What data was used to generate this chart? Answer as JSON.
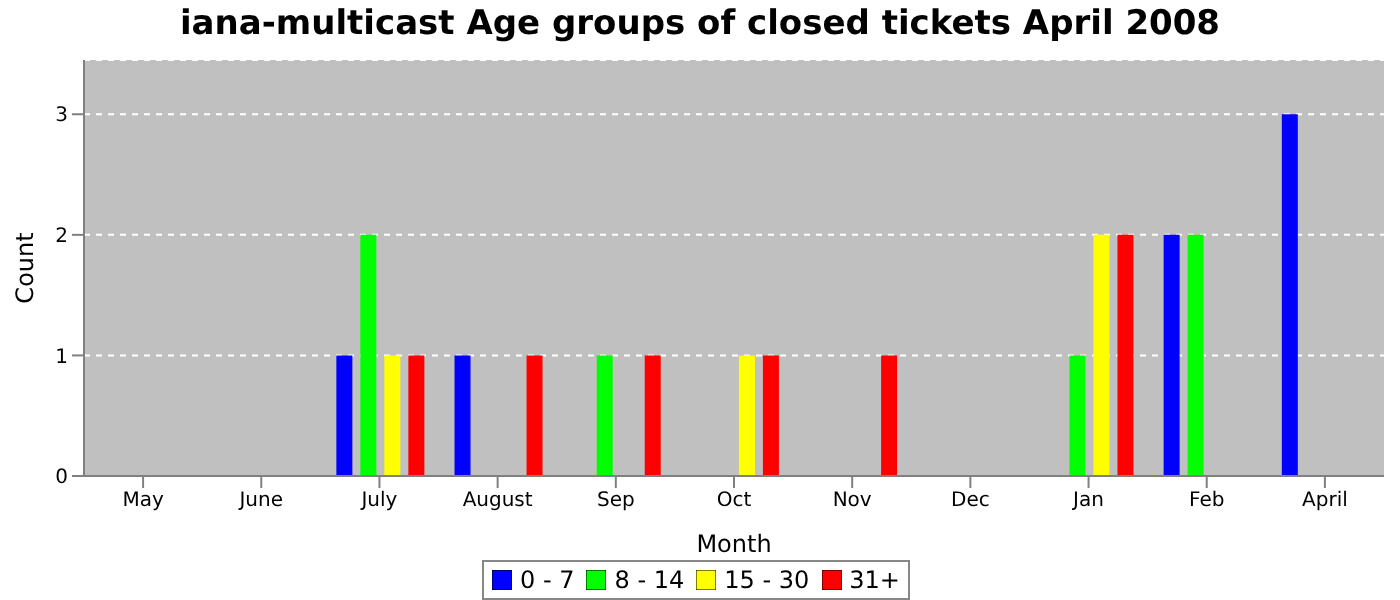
{
  "chart_data": {
    "type": "bar",
    "title": "iana-multicast Age groups of closed tickets April 2008",
    "xlabel": "Month",
    "ylabel": "Count",
    "categories": [
      "May",
      "June",
      "July",
      "August",
      "Sep",
      "Oct",
      "Nov",
      "Dec",
      "Jan",
      "Feb",
      "April"
    ],
    "series": [
      {
        "name": "0 - 7",
        "color": "#0000ff",
        "values": [
          0,
          0,
          1,
          1,
          0,
          0,
          0,
          0,
          0,
          2,
          3
        ]
      },
      {
        "name": "8 - 14",
        "color": "#00ff00",
        "values": [
          0,
          0,
          2,
          0,
          1,
          0,
          0,
          0,
          1,
          2,
          0
        ]
      },
      {
        "name": "15 - 30",
        "color": "#ffff00",
        "values": [
          0,
          0,
          1,
          0,
          0,
          1,
          0,
          0,
          2,
          0,
          0
        ]
      },
      {
        "name": "31+",
        "color": "#ff0000",
        "values": [
          0,
          0,
          1,
          1,
          1,
          1,
          1,
          0,
          2,
          0,
          0
        ]
      }
    ],
    "ylim": [
      0,
      3.45
    ],
    "yticks": [
      0,
      1,
      2,
      3
    ],
    "grid": "y",
    "legend": "bottom"
  }
}
